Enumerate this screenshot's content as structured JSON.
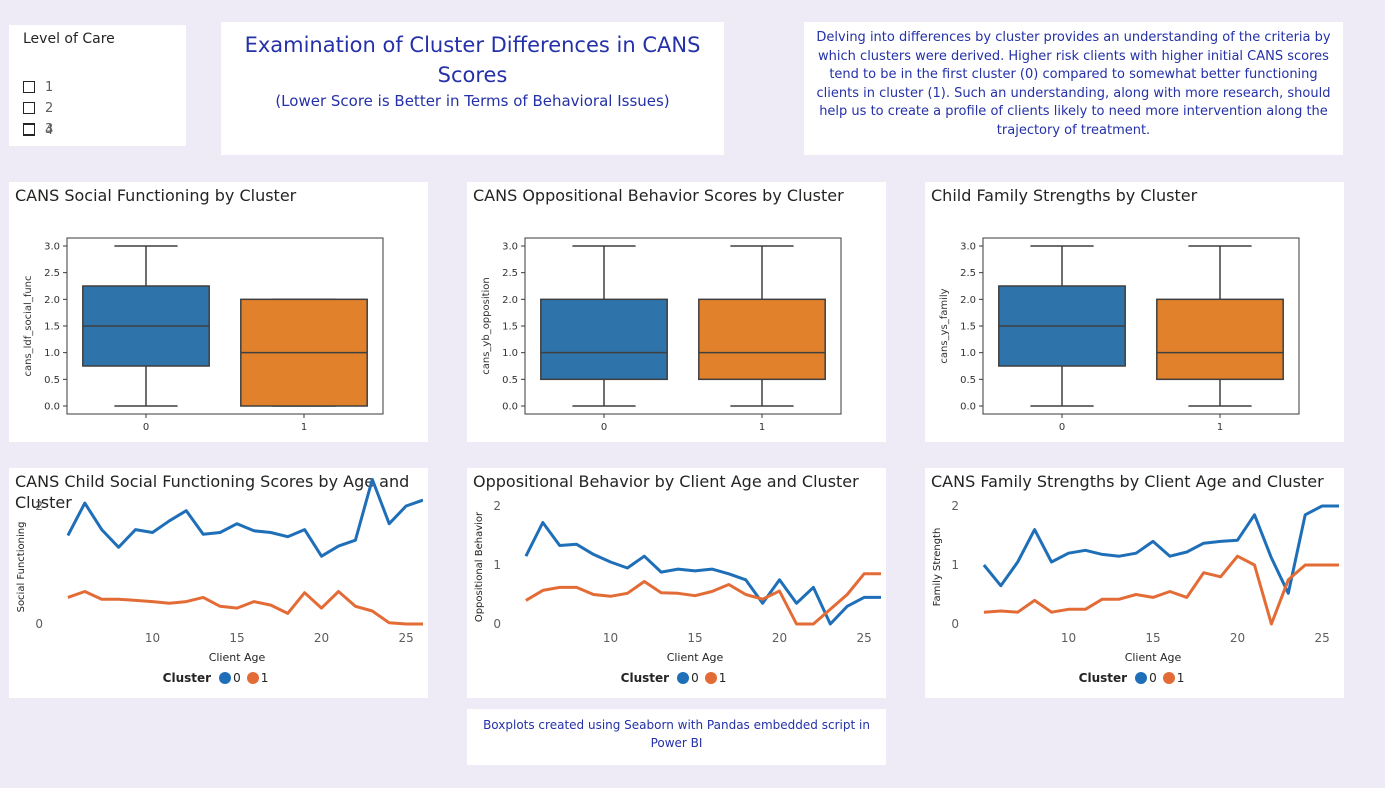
{
  "slicer": {
    "title": "Level of Care",
    "options": [
      "1",
      "2",
      "3",
      "4"
    ]
  },
  "header": {
    "title": "Examination of Cluster Differences in CANS Scores",
    "subtitle": "(Lower Score is Better in Terms of Behavioral Issues)"
  },
  "description": "Delving into differences by cluster provides an understanding of the criteria by which clusters were derived.  Higher risk clients with higher initial CANS scores tend to be in the first cluster (0) compared to somewhat better functioning clients in cluster (1).  Such an understanding, along with more research, should help us to create a profile of clients likely to need more intervention along the trajectory of treatment.",
  "footer": "Boxplots created using Seaborn with Pandas embedded script in Power BI",
  "colors": {
    "box0": "#2e73a9",
    "box1": "#e1812c",
    "line0": "#1f6fb8",
    "line1": "#e36c36",
    "accent_text": "#2431a8"
  },
  "chart_data": [
    {
      "type": "boxplot",
      "title": "CANS Social Functioning by Cluster",
      "ylabel": "cans_ldf_social_func",
      "ylim": [
        -0.15,
        3.15
      ],
      "yticks": [
        "0.0",
        "0.5",
        "1.0",
        "1.5",
        "2.0",
        "2.5",
        "3.0"
      ],
      "categories": [
        "0",
        "1"
      ],
      "boxes": [
        {
          "min": 0,
          "q1": 0.75,
          "median": 1.5,
          "q3": 2.25,
          "max": 3
        },
        {
          "min": 0,
          "q1": 0,
          "median": 1,
          "q3": 2,
          "max": 2
        }
      ]
    },
    {
      "type": "boxplot",
      "title": "CANS Oppositional Behavior Scores by Cluster",
      "ylabel": "cans_yb_opposition",
      "ylim": [
        -0.15,
        3.15
      ],
      "yticks": [
        "0.0",
        "0.5",
        "1.0",
        "1.5",
        "2.0",
        "2.5",
        "3.0"
      ],
      "categories": [
        "0",
        "1"
      ],
      "boxes": [
        {
          "min": 0,
          "q1": 0.5,
          "median": 1,
          "q3": 2,
          "max": 3
        },
        {
          "min": 0,
          "q1": 0.5,
          "median": 1,
          "q3": 2,
          "max": 3
        }
      ]
    },
    {
      "type": "boxplot",
      "title": "Child Family Strengths by Cluster",
      "ylabel": "cans_ys_family",
      "ylim": [
        -0.15,
        3.15
      ],
      "yticks": [
        "0.0",
        "0.5",
        "1.0",
        "1.5",
        "2.0",
        "2.5",
        "3.0"
      ],
      "categories": [
        "0",
        "1"
      ],
      "boxes": [
        {
          "min": 0,
          "q1": 0.75,
          "median": 1.5,
          "q3": 2.25,
          "max": 3
        },
        {
          "min": 0,
          "q1": 0.5,
          "median": 1,
          "q3": 2,
          "max": 3
        }
      ]
    },
    {
      "type": "line",
      "title": "CANS Child Social Functioning Scores by Age and Cluster",
      "xlabel": "Client Age",
      "ylabel": "Social Functioning",
      "xlim": [
        4,
        26
      ],
      "ylim": [
        0,
        2
      ],
      "xticks": [
        10,
        15,
        20,
        25
      ],
      "yticks": [
        0,
        2
      ],
      "legend_title": "Cluster",
      "x": [
        5,
        6,
        7,
        8,
        9,
        10,
        11,
        12,
        13,
        14,
        15,
        16,
        17,
        18,
        19,
        20,
        21,
        22,
        23,
        24,
        25,
        26
      ],
      "series": [
        {
          "name": "0",
          "values": [
            1.5,
            2.05,
            1.6,
            1.3,
            1.6,
            1.55,
            1.75,
            1.92,
            1.52,
            1.55,
            1.7,
            1.58,
            1.55,
            1.48,
            1.6,
            1.15,
            1.32,
            1.42,
            2.45,
            1.7,
            2.0,
            2.1
          ]
        },
        {
          "name": "1",
          "values": [
            0.45,
            0.55,
            0.42,
            0.42,
            0.4,
            0.38,
            0.35,
            0.38,
            0.45,
            0.3,
            0.27,
            0.38,
            0.32,
            0.18,
            0.53,
            0.27,
            0.55,
            0.3,
            0.22,
            0.02,
            0.0,
            0.0
          ]
        }
      ]
    },
    {
      "type": "line",
      "title": "Oppositional Behavior by Client Age and Cluster",
      "xlabel": "Client Age",
      "ylabel": "Oppositional Behavior",
      "xlim": [
        4,
        26
      ],
      "ylim": [
        0,
        2
      ],
      "xticks": [
        10,
        15,
        20,
        25
      ],
      "yticks": [
        0,
        1,
        2
      ],
      "legend_title": "Cluster",
      "x": [
        5,
        6,
        7,
        8,
        9,
        10,
        11,
        12,
        13,
        14,
        15,
        16,
        17,
        18,
        19,
        20,
        21,
        22,
        23,
        24,
        25,
        26
      ],
      "series": [
        {
          "name": "0",
          "values": [
            1.15,
            1.72,
            1.33,
            1.35,
            1.18,
            1.05,
            0.95,
            1.15,
            0.88,
            0.93,
            0.9,
            0.93,
            0.85,
            0.75,
            0.35,
            0.75,
            0.35,
            0.62,
            0.0,
            0.3,
            0.45,
            0.45
          ]
        },
        {
          "name": "1",
          "values": [
            0.4,
            0.57,
            0.62,
            0.62,
            0.5,
            0.47,
            0.52,
            0.72,
            0.53,
            0.52,
            0.48,
            0.55,
            0.67,
            0.5,
            0.42,
            0.56,
            0.0,
            0.0,
            0.25,
            0.5,
            0.85,
            0.85
          ]
        }
      ]
    },
    {
      "type": "line",
      "title": "CANS Family Strengths by Client Age and Cluster",
      "xlabel": "Client Age",
      "ylabel": "Family Strength",
      "xlim": [
        4,
        26
      ],
      "ylim": [
        0,
        2
      ],
      "xticks": [
        10,
        15,
        20,
        25
      ],
      "yticks": [
        0,
        1,
        2
      ],
      "legend_title": "Cluster",
      "x": [
        5,
        6,
        7,
        8,
        9,
        10,
        11,
        12,
        13,
        14,
        15,
        16,
        17,
        18,
        19,
        20,
        21,
        22,
        23,
        24,
        25,
        26
      ],
      "series": [
        {
          "name": "0",
          "values": [
            1.0,
            0.65,
            1.05,
            1.6,
            1.05,
            1.2,
            1.25,
            1.18,
            1.15,
            1.2,
            1.4,
            1.15,
            1.22,
            1.37,
            1.4,
            1.42,
            1.85,
            1.12,
            0.52,
            1.85,
            2.0,
            2.0
          ]
        },
        {
          "name": "1",
          "values": [
            0.2,
            0.22,
            0.2,
            0.4,
            0.2,
            0.25,
            0.25,
            0.42,
            0.42,
            0.5,
            0.45,
            0.55,
            0.45,
            0.87,
            0.8,
            1.15,
            1.0,
            0.0,
            0.75,
            1.0,
            1.0,
            1.0
          ]
        }
      ]
    }
  ]
}
